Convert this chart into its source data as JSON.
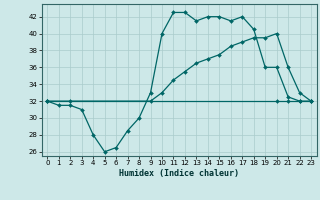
{
  "xlabel": "Humidex (Indice chaleur)",
  "background_color": "#cde8e8",
  "grid_color": "#aacccc",
  "line_color": "#006666",
  "xlim": [
    -0.5,
    23.5
  ],
  "ylim": [
    25.5,
    43.5
  ],
  "xticks": [
    0,
    1,
    2,
    3,
    4,
    5,
    6,
    7,
    8,
    9,
    10,
    11,
    12,
    13,
    14,
    15,
    16,
    17,
    18,
    19,
    20,
    21,
    22,
    23
  ],
  "yticks": [
    26,
    28,
    30,
    32,
    34,
    36,
    38,
    40,
    42
  ],
  "line1_x": [
    0,
    1,
    2,
    3,
    4,
    5,
    6,
    7,
    8,
    9,
    10,
    11,
    12,
    13,
    14,
    15,
    16,
    17,
    18,
    19,
    20,
    21,
    22,
    23
  ],
  "line1_y": [
    32,
    31.5,
    31.5,
    31,
    28,
    26,
    26.5,
    28.5,
    30,
    33,
    40,
    42.5,
    42.5,
    41.5,
    42,
    42,
    41.5,
    42,
    40.5,
    36,
    36,
    32.5,
    32,
    32
  ],
  "line2_x": [
    0,
    2,
    20,
    21,
    22,
    23
  ],
  "line2_y": [
    32,
    32,
    32,
    32,
    32,
    32
  ],
  "line3_x": [
    0,
    9,
    10,
    11,
    12,
    13,
    14,
    15,
    16,
    17,
    18,
    19,
    20,
    21,
    22,
    23
  ],
  "line3_y": [
    32,
    32,
    33,
    34.5,
    35.5,
    36.5,
    37,
    37.5,
    38.5,
    39,
    39.5,
    39.5,
    40,
    36,
    33,
    32
  ]
}
